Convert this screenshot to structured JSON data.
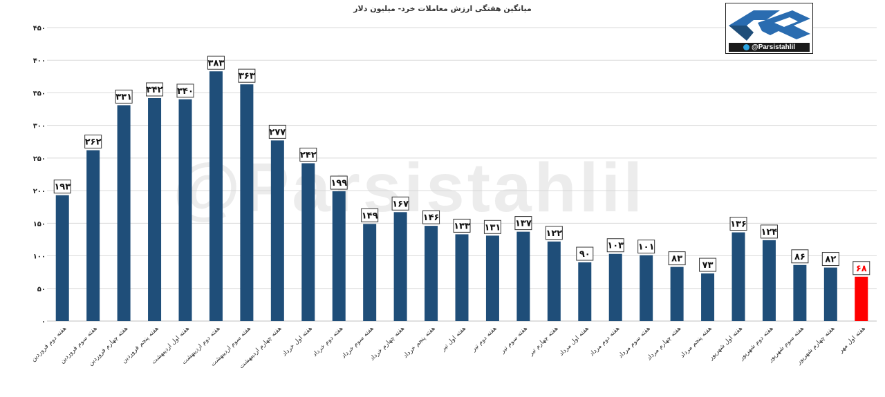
{
  "watermark": "@Parsistahlil",
  "logo": {
    "handle": "@Parsistahlil",
    "icon": "telegram-icon"
  },
  "colors": {
    "bar": "#1f4e79",
    "highlight": "#ff0000",
    "grid": "#d9d9d9",
    "axis": "#bfbfbf"
  },
  "chart_data": {
    "type": "bar",
    "title": "میانگین هفتگی ارزش معاملات خرد- میلیون دلار",
    "xlabel": "",
    "ylabel": "",
    "ylim": [
      0,
      450
    ],
    "yticks": [
      "۰",
      "۵۰",
      "۱۰۰",
      "۱۵۰",
      "۲۰۰",
      "۲۵۰",
      "۳۰۰",
      "۳۵۰",
      "۴۰۰",
      "۴۵۰"
    ],
    "ytick_values": [
      0,
      50,
      100,
      150,
      200,
      250,
      300,
      350,
      400,
      450
    ],
    "grid": true,
    "legend": "none",
    "highlight_index": 26,
    "categories": [
      "هفته دوم فروردین",
      "هفته سوم فروردین",
      "هفته چهارم فروردین",
      "هفته پنجم فروردین",
      "هفته اول اردیبهشت",
      "هفته دوم اردیبهشت",
      "هفته سوم اردیبهشت",
      "هفته چهارم اردیبهشت",
      "هفته اول خرداد",
      "هفته دوم خرداد",
      "هفته سوم خرداد",
      "هفته چهارم خرداد",
      "هفته پنجم خرداد",
      "هفته اول تیر",
      "هفته دوم تیر",
      "هفته سوم تیر",
      "هفته چهارم تیر",
      "هفته اول مرداد",
      "هفته دوم مرداد",
      "هفته سوم مرداد",
      "هفته چهارم مرداد",
      "هفته پنجم مرداد",
      "هفته اول شهریور",
      "هفته دوم شهریور",
      "هفته سوم شهریور",
      "هفته چهارم شهریور",
      "هفته اول مهر"
    ],
    "values": [
      193,
      262,
      331,
      342,
      340,
      383,
      363,
      277,
      242,
      199,
      149,
      167,
      146,
      133,
      131,
      137,
      122,
      90,
      103,
      101,
      83,
      73,
      136,
      124,
      86,
      82,
      68
    ],
    "data_labels": [
      "۱۹۳",
      "۲۶۲",
      "۳۳۱",
      "۳۴۲",
      "۳۴۰",
      "۳۸۳",
      "۳۶۳",
      "۲۷۷",
      "۲۴۲",
      "۱۹۹",
      "۱۴۹",
      "۱۶۷",
      "۱۴۶",
      "۱۳۳",
      "۱۳۱",
      "۱۳۷",
      "۱۲۲",
      "۹۰",
      "۱۰۳",
      "۱۰۱",
      "۸۳",
      "۷۳",
      "۱۳۶",
      "۱۲۴",
      "۸۶",
      "۸۲",
      "۶۸"
    ]
  }
}
